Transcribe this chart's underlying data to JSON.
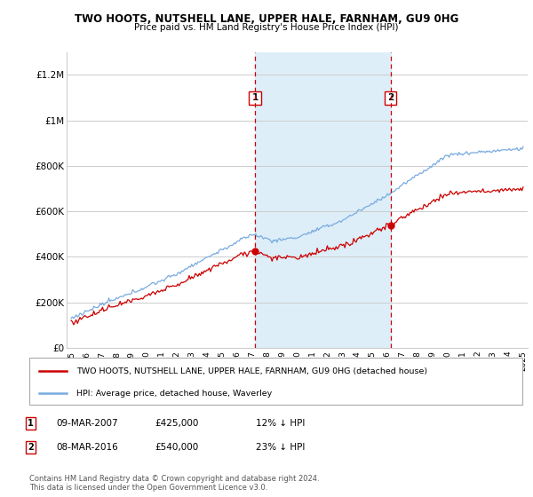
{
  "title": "TWO HOOTS, NUTSHELL LANE, UPPER HALE, FARNHAM, GU9 0HG",
  "subtitle": "Price paid vs. HM Land Registry's House Price Index (HPI)",
  "ylabel_ticks": [
    "£0",
    "£200K",
    "£400K",
    "£600K",
    "£800K",
    "£1M",
    "£1.2M"
  ],
  "ytick_values": [
    0,
    200000,
    400000,
    600000,
    800000,
    1000000,
    1200000
  ],
  "ylim": [
    0,
    1300000
  ],
  "sale1_year": 2007.2,
  "sale1_price": 425000,
  "sale2_year": 2016.2,
  "sale2_price": 540000,
  "red_color": "#cc0000",
  "blue_color": "#7aabe0",
  "shaded_color": "#ddeef8",
  "vline_color": "#cc0000",
  "background_color": "#ffffff",
  "grid_color": "#cccccc",
  "legend_label_red": "TWO HOOTS, NUTSHELL LANE, UPPER HALE, FARNHAM, GU9 0HG (detached house)",
  "legend_label_blue": "HPI: Average price, detached house, Waverley",
  "table_entries": [
    {
      "num": "1",
      "date": "09-MAR-2007",
      "price": "£425,000",
      "pct": "12% ↓ HPI"
    },
    {
      "num": "2",
      "date": "08-MAR-2016",
      "price": "£540,000",
      "pct": "23% ↓ HPI"
    }
  ],
  "footer": "Contains HM Land Registry data © Crown copyright and database right 2024.\nThis data is licensed under the Open Government Licence v3.0.",
  "xstart_year": 1995,
  "xend_year": 2025
}
